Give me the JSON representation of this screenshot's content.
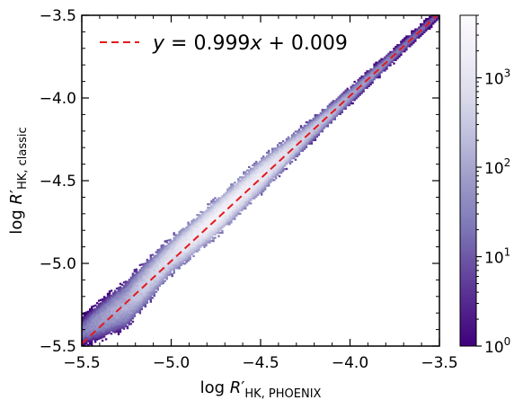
{
  "chart_data": {
    "type": "heatmap",
    "xlabel": {
      "main": "log ",
      "var": "R",
      "prime": "′",
      "sub": "HK, PHOENIX"
    },
    "ylabel": {
      "main": "log ",
      "var": "R",
      "prime": "′",
      "sub": "HK, classic"
    },
    "xlim": [
      -5.5,
      -3.5
    ],
    "ylim": [
      -5.5,
      -3.5
    ],
    "xticks": [
      -5.5,
      -5.0,
      -4.5,
      -4.0,
      -3.5
    ],
    "yticks": [
      -5.5,
      -5.0,
      -4.5,
      -4.0,
      -3.5
    ],
    "xtick_labels": [
      "−5.5",
      "−5.0",
      "−4.5",
      "−4.0",
      "−3.5"
    ],
    "ytick_labels": [
      "−5.5",
      "−5.0",
      "−4.5",
      "−4.0",
      "−3.5"
    ],
    "fit_line": {
      "slope": 0.999,
      "intercept": 0.009,
      "color": "#e31a1c",
      "style": "dashed"
    },
    "legend": {
      "label": "y = 0.999x + 0.009",
      "placement": "top-left"
    },
    "colorbar": {
      "scale": "log",
      "range": [
        1,
        5000
      ],
      "ticks": [
        1,
        10,
        100,
        1000
      ],
      "tick_labels": [
        {
          "base": "10",
          "exp": "0"
        },
        {
          "base": "10",
          "exp": "1"
        },
        {
          "base": "10",
          "exp": "2"
        },
        {
          "base": "10",
          "exp": "3"
        }
      ],
      "colormap": "Purples_r",
      "colors": [
        "#3f007d",
        "#54278f",
        "#6a51a3",
        "#807dba",
        "#9e9ac8",
        "#bcbddc",
        "#dadaeb",
        "#efedf5",
        "#fcfbfd"
      ]
    },
    "density_ridge": [
      {
        "x": -5.5,
        "y_low": -5.5,
        "y_high": -5.33,
        "peak": 20
      },
      {
        "x": -5.25,
        "y_low": -5.38,
        "y_high": -5.12,
        "peak": 150
      },
      {
        "x": -5.0,
        "y_low": -5.06,
        "y_high": -4.86,
        "peak": 800
      },
      {
        "x": -4.75,
        "y_low": -4.83,
        "y_high": -4.63,
        "peak": 2500
      },
      {
        "x": -4.5,
        "y_low": -4.57,
        "y_high": -4.38,
        "peak": 1500
      },
      {
        "x": -4.25,
        "y_low": -4.3,
        "y_high": -4.17,
        "peak": 400
      },
      {
        "x": -4.0,
        "y_low": -4.04,
        "y_high": -3.94,
        "peak": 100
      },
      {
        "x": -3.75,
        "y_low": -3.78,
        "y_high": -3.7,
        "peak": 30
      },
      {
        "x": -3.5,
        "y_low": -3.52,
        "y_high": -3.46,
        "peak": 10
      }
    ]
  }
}
